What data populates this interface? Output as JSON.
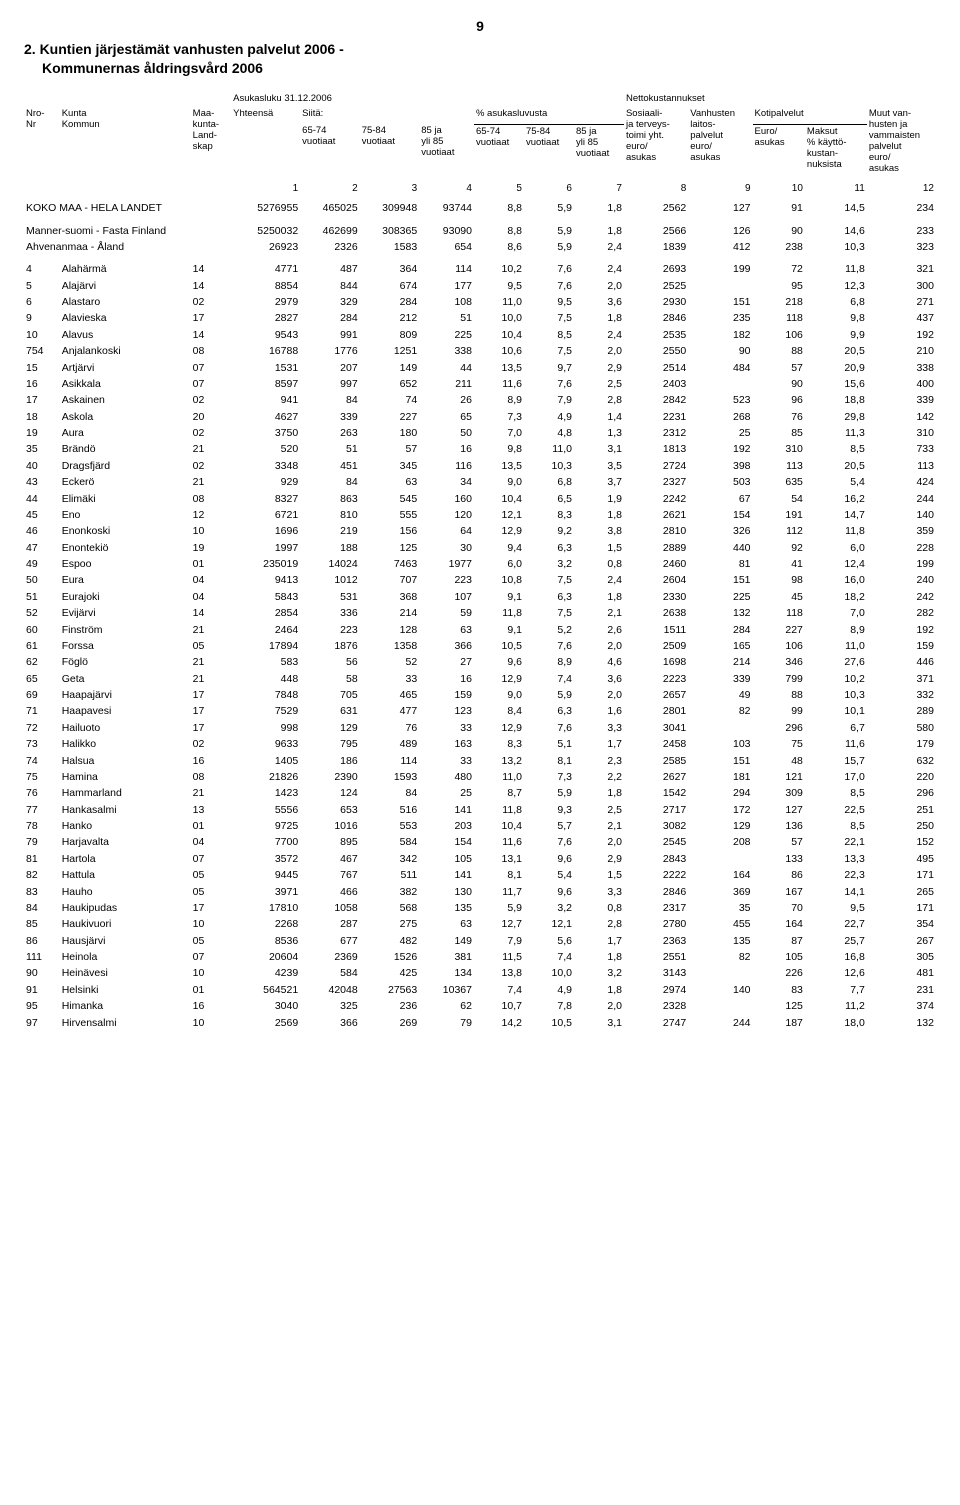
{
  "page_number": "9",
  "title_line1": "2. Kuntien järjestämät vanhusten palvelut 2006 -",
  "title_line2": "Kommunernas åldringsvård 2006",
  "header": {
    "top_population": "Asukasluku 31.12.2006",
    "top_netcost": "Nettokustannukset",
    "nro": "Nro-\nNr",
    "kunta": "Kunta\nKommun",
    "maakunta": "Maa-\nkunta-\nLand-\nskap",
    "yhteensa": "Yhteensä",
    "siita": "Siitä:",
    "c65_74": "65-74\nvuotiaat",
    "c75_84": "75-84\nvuotiaat",
    "c85": "85 ja\nyli 85\nvuotiaat",
    "pct_group": "% asukasluvusta",
    "p65_74": "65-74\nvuotiaat",
    "p75_84": "75-84\nvuotiaat",
    "p85": "85 ja\nyli 85\nvuotiaat",
    "sosiaali": "Sosiaali-\nja terveys-\ntoimi yht.\neuro/\nasukas",
    "vanhusten": "Vanhusten\nlaitos-\npalvelut\neuro/\nasukas",
    "kotipalvelut": "Kotipalvelut",
    "euro": "Euro/\nasukas",
    "maksut": "Maksut\n% käyttö-\nkustan-\nnuksista",
    "muut": "Muut van-\nhusten ja\nvammaisten\npalvelut\neuro/\nasukas"
  },
  "colnums": [
    "1",
    "2",
    "3",
    "4",
    "5",
    "6",
    "7",
    "8",
    "9",
    "10",
    "11",
    "12"
  ],
  "group_rows": [
    {
      "id": "koko",
      "nro": "",
      "name": "KOKO MAA - HELA LANDET",
      "mk": "",
      "c1": "5276955",
      "c2": "465025",
      "c3": "309948",
      "c4": "93744",
      "c5": "8,8",
      "c6": "5,9",
      "c7": "1,8",
      "c8": "2562",
      "c9": "127",
      "c10": "91",
      "c11": "14,5",
      "c12": "234"
    },
    {
      "id": "manner",
      "nro": "",
      "name": "Manner-suomi - Fasta Finland",
      "mk": "",
      "c1": "5250032",
      "c2": "462699",
      "c3": "308365",
      "c4": "93090",
      "c5": "8,8",
      "c6": "5,9",
      "c7": "1,8",
      "c8": "2566",
      "c9": "126",
      "c10": "90",
      "c11": "14,6",
      "c12": "233"
    },
    {
      "id": "ahven",
      "nro": "",
      "name": "Ahvenanmaa - Åland",
      "mk": "",
      "c1": "26923",
      "c2": "2326",
      "c3": "1583",
      "c4": "654",
      "c5": "8,6",
      "c6": "5,9",
      "c7": "2,4",
      "c8": "1839",
      "c9": "412",
      "c10": "238",
      "c11": "10,3",
      "c12": "323"
    }
  ],
  "rows": [
    {
      "nro": "4",
      "name": "Alahärmä",
      "mk": "14",
      "c1": "4771",
      "c2": "487",
      "c3": "364",
      "c4": "114",
      "c5": "10,2",
      "c6": "7,6",
      "c7": "2,4",
      "c8": "2693",
      "c9": "199",
      "c10": "72",
      "c11": "11,8",
      "c12": "321"
    },
    {
      "nro": "5",
      "name": "Alajärvi",
      "mk": "14",
      "c1": "8854",
      "c2": "844",
      "c3": "674",
      "c4": "177",
      "c5": "9,5",
      "c6": "7,6",
      "c7": "2,0",
      "c8": "2525",
      "c9": "",
      "c10": "95",
      "c11": "12,3",
      "c12": "300"
    },
    {
      "nro": "6",
      "name": "Alastaro",
      "mk": "02",
      "c1": "2979",
      "c2": "329",
      "c3": "284",
      "c4": "108",
      "c5": "11,0",
      "c6": "9,5",
      "c7": "3,6",
      "c8": "2930",
      "c9": "151",
      "c10": "218",
      "c11": "6,8",
      "c12": "271"
    },
    {
      "nro": "9",
      "name": "Alavieska",
      "mk": "17",
      "c1": "2827",
      "c2": "284",
      "c3": "212",
      "c4": "51",
      "c5": "10,0",
      "c6": "7,5",
      "c7": "1,8",
      "c8": "2846",
      "c9": "235",
      "c10": "118",
      "c11": "9,8",
      "c12": "437"
    },
    {
      "nro": "10",
      "name": "Alavus",
      "mk": "14",
      "c1": "9543",
      "c2": "991",
      "c3": "809",
      "c4": "225",
      "c5": "10,4",
      "c6": "8,5",
      "c7": "2,4",
      "c8": "2535",
      "c9": "182",
      "c10": "106",
      "c11": "9,9",
      "c12": "192"
    },
    {
      "nro": "754",
      "name": "Anjalankoski",
      "mk": "08",
      "c1": "16788",
      "c2": "1776",
      "c3": "1251",
      "c4": "338",
      "c5": "10,6",
      "c6": "7,5",
      "c7": "2,0",
      "c8": "2550",
      "c9": "90",
      "c10": "88",
      "c11": "20,5",
      "c12": "210"
    },
    {
      "nro": "15",
      "name": "Artjärvi",
      "mk": "07",
      "c1": "1531",
      "c2": "207",
      "c3": "149",
      "c4": "44",
      "c5": "13,5",
      "c6": "9,7",
      "c7": "2,9",
      "c8": "2514",
      "c9": "484",
      "c10": "57",
      "c11": "20,9",
      "c12": "338"
    },
    {
      "nro": "16",
      "name": "Asikkala",
      "mk": "07",
      "c1": "8597",
      "c2": "997",
      "c3": "652",
      "c4": "211",
      "c5": "11,6",
      "c6": "7,6",
      "c7": "2,5",
      "c8": "2403",
      "c9": "",
      "c10": "90",
      "c11": "15,6",
      "c12": "400"
    },
    {
      "nro": "17",
      "name": "Askainen",
      "mk": "02",
      "c1": "941",
      "c2": "84",
      "c3": "74",
      "c4": "26",
      "c5": "8,9",
      "c6": "7,9",
      "c7": "2,8",
      "c8": "2842",
      "c9": "523",
      "c10": "96",
      "c11": "18,8",
      "c12": "339"
    },
    {
      "nro": "18",
      "name": "Askola",
      "mk": "20",
      "c1": "4627",
      "c2": "339",
      "c3": "227",
      "c4": "65",
      "c5": "7,3",
      "c6": "4,9",
      "c7": "1,4",
      "c8": "2231",
      "c9": "268",
      "c10": "76",
      "c11": "29,8",
      "c12": "142"
    },
    {
      "nro": "19",
      "name": "Aura",
      "mk": "02",
      "c1": "3750",
      "c2": "263",
      "c3": "180",
      "c4": "50",
      "c5": "7,0",
      "c6": "4,8",
      "c7": "1,3",
      "c8": "2312",
      "c9": "25",
      "c10": "85",
      "c11": "11,3",
      "c12": "310"
    },
    {
      "nro": "35",
      "name": "Brändö",
      "mk": "21",
      "c1": "520",
      "c2": "51",
      "c3": "57",
      "c4": "16",
      "c5": "9,8",
      "c6": "11,0",
      "c7": "3,1",
      "c8": "1813",
      "c9": "192",
      "c10": "310",
      "c11": "8,5",
      "c12": "733"
    },
    {
      "nro": "40",
      "name": "Dragsfjärd",
      "mk": "02",
      "c1": "3348",
      "c2": "451",
      "c3": "345",
      "c4": "116",
      "c5": "13,5",
      "c6": "10,3",
      "c7": "3,5",
      "c8": "2724",
      "c9": "398",
      "c10": "113",
      "c11": "20,5",
      "c12": "113"
    },
    {
      "nro": "43",
      "name": "Eckerö",
      "mk": "21",
      "c1": "929",
      "c2": "84",
      "c3": "63",
      "c4": "34",
      "c5": "9,0",
      "c6": "6,8",
      "c7": "3,7",
      "c8": "2327",
      "c9": "503",
      "c10": "635",
      "c11": "5,4",
      "c12": "424"
    },
    {
      "nro": "44",
      "name": "Elimäki",
      "mk": "08",
      "c1": "8327",
      "c2": "863",
      "c3": "545",
      "c4": "160",
      "c5": "10,4",
      "c6": "6,5",
      "c7": "1,9",
      "c8": "2242",
      "c9": "67",
      "c10": "54",
      "c11": "16,2",
      "c12": "244"
    },
    {
      "nro": "45",
      "name": "Eno",
      "mk": "12",
      "c1": "6721",
      "c2": "810",
      "c3": "555",
      "c4": "120",
      "c5": "12,1",
      "c6": "8,3",
      "c7": "1,8",
      "c8": "2621",
      "c9": "154",
      "c10": "191",
      "c11": "14,7",
      "c12": "140"
    },
    {
      "nro": "46",
      "name": "Enonkoski",
      "mk": "10",
      "c1": "1696",
      "c2": "219",
      "c3": "156",
      "c4": "64",
      "c5": "12,9",
      "c6": "9,2",
      "c7": "3,8",
      "c8": "2810",
      "c9": "326",
      "c10": "112",
      "c11": "11,8",
      "c12": "359"
    },
    {
      "nro": "47",
      "name": "Enontekiö",
      "mk": "19",
      "c1": "1997",
      "c2": "188",
      "c3": "125",
      "c4": "30",
      "c5": "9,4",
      "c6": "6,3",
      "c7": "1,5",
      "c8": "2889",
      "c9": "440",
      "c10": "92",
      "c11": "6,0",
      "c12": "228"
    },
    {
      "nro": "49",
      "name": "Espoo",
      "mk": "01",
      "c1": "235019",
      "c2": "14024",
      "c3": "7463",
      "c4": "1977",
      "c5": "6,0",
      "c6": "3,2",
      "c7": "0,8",
      "c8": "2460",
      "c9": "81",
      "c10": "41",
      "c11": "12,4",
      "c12": "199"
    },
    {
      "nro": "50",
      "name": "Eura",
      "mk": "04",
      "c1": "9413",
      "c2": "1012",
      "c3": "707",
      "c4": "223",
      "c5": "10,8",
      "c6": "7,5",
      "c7": "2,4",
      "c8": "2604",
      "c9": "151",
      "c10": "98",
      "c11": "16,0",
      "c12": "240"
    },
    {
      "nro": "51",
      "name": "Eurajoki",
      "mk": "04",
      "c1": "5843",
      "c2": "531",
      "c3": "368",
      "c4": "107",
      "c5": "9,1",
      "c6": "6,3",
      "c7": "1,8",
      "c8": "2330",
      "c9": "225",
      "c10": "45",
      "c11": "18,2",
      "c12": "242"
    },
    {
      "nro": "52",
      "name": "Evijärvi",
      "mk": "14",
      "c1": "2854",
      "c2": "336",
      "c3": "214",
      "c4": "59",
      "c5": "11,8",
      "c6": "7,5",
      "c7": "2,1",
      "c8": "2638",
      "c9": "132",
      "c10": "118",
      "c11": "7,0",
      "c12": "282"
    },
    {
      "nro": "60",
      "name": "Finström",
      "mk": "21",
      "c1": "2464",
      "c2": "223",
      "c3": "128",
      "c4": "63",
      "c5": "9,1",
      "c6": "5,2",
      "c7": "2,6",
      "c8": "1511",
      "c9": "284",
      "c10": "227",
      "c11": "8,9",
      "c12": "192"
    },
    {
      "nro": "61",
      "name": "Forssa",
      "mk": "05",
      "c1": "17894",
      "c2": "1876",
      "c3": "1358",
      "c4": "366",
      "c5": "10,5",
      "c6": "7,6",
      "c7": "2,0",
      "c8": "2509",
      "c9": "165",
      "c10": "106",
      "c11": "11,0",
      "c12": "159"
    },
    {
      "nro": "62",
      "name": "Föglö",
      "mk": "21",
      "c1": "583",
      "c2": "56",
      "c3": "52",
      "c4": "27",
      "c5": "9,6",
      "c6": "8,9",
      "c7": "4,6",
      "c8": "1698",
      "c9": "214",
      "c10": "346",
      "c11": "27,6",
      "c12": "446"
    },
    {
      "nro": "65",
      "name": "Geta",
      "mk": "21",
      "c1": "448",
      "c2": "58",
      "c3": "33",
      "c4": "16",
      "c5": "12,9",
      "c6": "7,4",
      "c7": "3,6",
      "c8": "2223",
      "c9": "339",
      "c10": "799",
      "c11": "10,2",
      "c12": "371"
    },
    {
      "nro": "69",
      "name": "Haapajärvi",
      "mk": "17",
      "c1": "7848",
      "c2": "705",
      "c3": "465",
      "c4": "159",
      "c5": "9,0",
      "c6": "5,9",
      "c7": "2,0",
      "c8": "2657",
      "c9": "49",
      "c10": "88",
      "c11": "10,3",
      "c12": "332"
    },
    {
      "nro": "71",
      "name": "Haapavesi",
      "mk": "17",
      "c1": "7529",
      "c2": "631",
      "c3": "477",
      "c4": "123",
      "c5": "8,4",
      "c6": "6,3",
      "c7": "1,6",
      "c8": "2801",
      "c9": "82",
      "c10": "99",
      "c11": "10,1",
      "c12": "289"
    },
    {
      "nro": "72",
      "name": "Hailuoto",
      "mk": "17",
      "c1": "998",
      "c2": "129",
      "c3": "76",
      "c4": "33",
      "c5": "12,9",
      "c6": "7,6",
      "c7": "3,3",
      "c8": "3041",
      "c9": "",
      "c10": "296",
      "c11": "6,7",
      "c12": "580"
    },
    {
      "nro": "73",
      "name": "Halikko",
      "mk": "02",
      "c1": "9633",
      "c2": "795",
      "c3": "489",
      "c4": "163",
      "c5": "8,3",
      "c6": "5,1",
      "c7": "1,7",
      "c8": "2458",
      "c9": "103",
      "c10": "75",
      "c11": "11,6",
      "c12": "179"
    },
    {
      "nro": "74",
      "name": "Halsua",
      "mk": "16",
      "c1": "1405",
      "c2": "186",
      "c3": "114",
      "c4": "33",
      "c5": "13,2",
      "c6": "8,1",
      "c7": "2,3",
      "c8": "2585",
      "c9": "151",
      "c10": "48",
      "c11": "15,7",
      "c12": "632"
    },
    {
      "nro": "75",
      "name": "Hamina",
      "mk": "08",
      "c1": "21826",
      "c2": "2390",
      "c3": "1593",
      "c4": "480",
      "c5": "11,0",
      "c6": "7,3",
      "c7": "2,2",
      "c8": "2627",
      "c9": "181",
      "c10": "121",
      "c11": "17,0",
      "c12": "220"
    },
    {
      "nro": "76",
      "name": "Hammarland",
      "mk": "21",
      "c1": "1423",
      "c2": "124",
      "c3": "84",
      "c4": "25",
      "c5": "8,7",
      "c6": "5,9",
      "c7": "1,8",
      "c8": "1542",
      "c9": "294",
      "c10": "309",
      "c11": "8,5",
      "c12": "296"
    },
    {
      "nro": "77",
      "name": "Hankasalmi",
      "mk": "13",
      "c1": "5556",
      "c2": "653",
      "c3": "516",
      "c4": "141",
      "c5": "11,8",
      "c6": "9,3",
      "c7": "2,5",
      "c8": "2717",
      "c9": "172",
      "c10": "127",
      "c11": "22,5",
      "c12": "251"
    },
    {
      "nro": "78",
      "name": "Hanko",
      "mk": "01",
      "c1": "9725",
      "c2": "1016",
      "c3": "553",
      "c4": "203",
      "c5": "10,4",
      "c6": "5,7",
      "c7": "2,1",
      "c8": "3082",
      "c9": "129",
      "c10": "136",
      "c11": "8,5",
      "c12": "250"
    },
    {
      "nro": "79",
      "name": "Harjavalta",
      "mk": "04",
      "c1": "7700",
      "c2": "895",
      "c3": "584",
      "c4": "154",
      "c5": "11,6",
      "c6": "7,6",
      "c7": "2,0",
      "c8": "2545",
      "c9": "208",
      "c10": "57",
      "c11": "22,1",
      "c12": "152"
    },
    {
      "nro": "81",
      "name": "Hartola",
      "mk": "07",
      "c1": "3572",
      "c2": "467",
      "c3": "342",
      "c4": "105",
      "c5": "13,1",
      "c6": "9,6",
      "c7": "2,9",
      "c8": "2843",
      "c9": "",
      "c10": "133",
      "c11": "13,3",
      "c12": "495"
    },
    {
      "nro": "82",
      "name": "Hattula",
      "mk": "05",
      "c1": "9445",
      "c2": "767",
      "c3": "511",
      "c4": "141",
      "c5": "8,1",
      "c6": "5,4",
      "c7": "1,5",
      "c8": "2222",
      "c9": "164",
      "c10": "86",
      "c11": "22,3",
      "c12": "171"
    },
    {
      "nro": "83",
      "name": "Hauho",
      "mk": "05",
      "c1": "3971",
      "c2": "466",
      "c3": "382",
      "c4": "130",
      "c5": "11,7",
      "c6": "9,6",
      "c7": "3,3",
      "c8": "2846",
      "c9": "369",
      "c10": "167",
      "c11": "14,1",
      "c12": "265"
    },
    {
      "nro": "84",
      "name": "Haukipudas",
      "mk": "17",
      "c1": "17810",
      "c2": "1058",
      "c3": "568",
      "c4": "135",
      "c5": "5,9",
      "c6": "3,2",
      "c7": "0,8",
      "c8": "2317",
      "c9": "35",
      "c10": "70",
      "c11": "9,5",
      "c12": "171"
    },
    {
      "nro": "85",
      "name": "Haukivuori",
      "mk": "10",
      "c1": "2268",
      "c2": "287",
      "c3": "275",
      "c4": "63",
      "c5": "12,7",
      "c6": "12,1",
      "c7": "2,8",
      "c8": "2780",
      "c9": "455",
      "c10": "164",
      "c11": "22,7",
      "c12": "354"
    },
    {
      "nro": "86",
      "name": "Hausjärvi",
      "mk": "05",
      "c1": "8536",
      "c2": "677",
      "c3": "482",
      "c4": "149",
      "c5": "7,9",
      "c6": "5,6",
      "c7": "1,7",
      "c8": "2363",
      "c9": "135",
      "c10": "87",
      "c11": "25,7",
      "c12": "267"
    },
    {
      "nro": "111",
      "name": "Heinola",
      "mk": "07",
      "c1": "20604",
      "c2": "2369",
      "c3": "1526",
      "c4": "381",
      "c5": "11,5",
      "c6": "7,4",
      "c7": "1,8",
      "c8": "2551",
      "c9": "82",
      "c10": "105",
      "c11": "16,8",
      "c12": "305"
    },
    {
      "nro": "90",
      "name": "Heinävesi",
      "mk": "10",
      "c1": "4239",
      "c2": "584",
      "c3": "425",
      "c4": "134",
      "c5": "13,8",
      "c6": "10,0",
      "c7": "3,2",
      "c8": "3143",
      "c9": "",
      "c10": "226",
      "c11": "12,6",
      "c12": "481"
    },
    {
      "nro": "91",
      "name": "Helsinki",
      "mk": "01",
      "c1": "564521",
      "c2": "42048",
      "c3": "27563",
      "c4": "10367",
      "c5": "7,4",
      "c6": "4,9",
      "c7": "1,8",
      "c8": "2974",
      "c9": "140",
      "c10": "83",
      "c11": "7,7",
      "c12": "231"
    },
    {
      "nro": "95",
      "name": "Himanka",
      "mk": "16",
      "c1": "3040",
      "c2": "325",
      "c3": "236",
      "c4": "62",
      "c5": "10,7",
      "c6": "7,8",
      "c7": "2,0",
      "c8": "2328",
      "c9": "",
      "c10": "125",
      "c11": "11,2",
      "c12": "374"
    },
    {
      "nro": "97",
      "name": "Hirvensalmi",
      "mk": "10",
      "c1": "2569",
      "c2": "366",
      "c3": "269",
      "c4": "79",
      "c5": "14,2",
      "c6": "10,5",
      "c7": "3,1",
      "c8": "2747",
      "c9": "244",
      "c10": "187",
      "c11": "18,0",
      "c12": "132"
    }
  ]
}
